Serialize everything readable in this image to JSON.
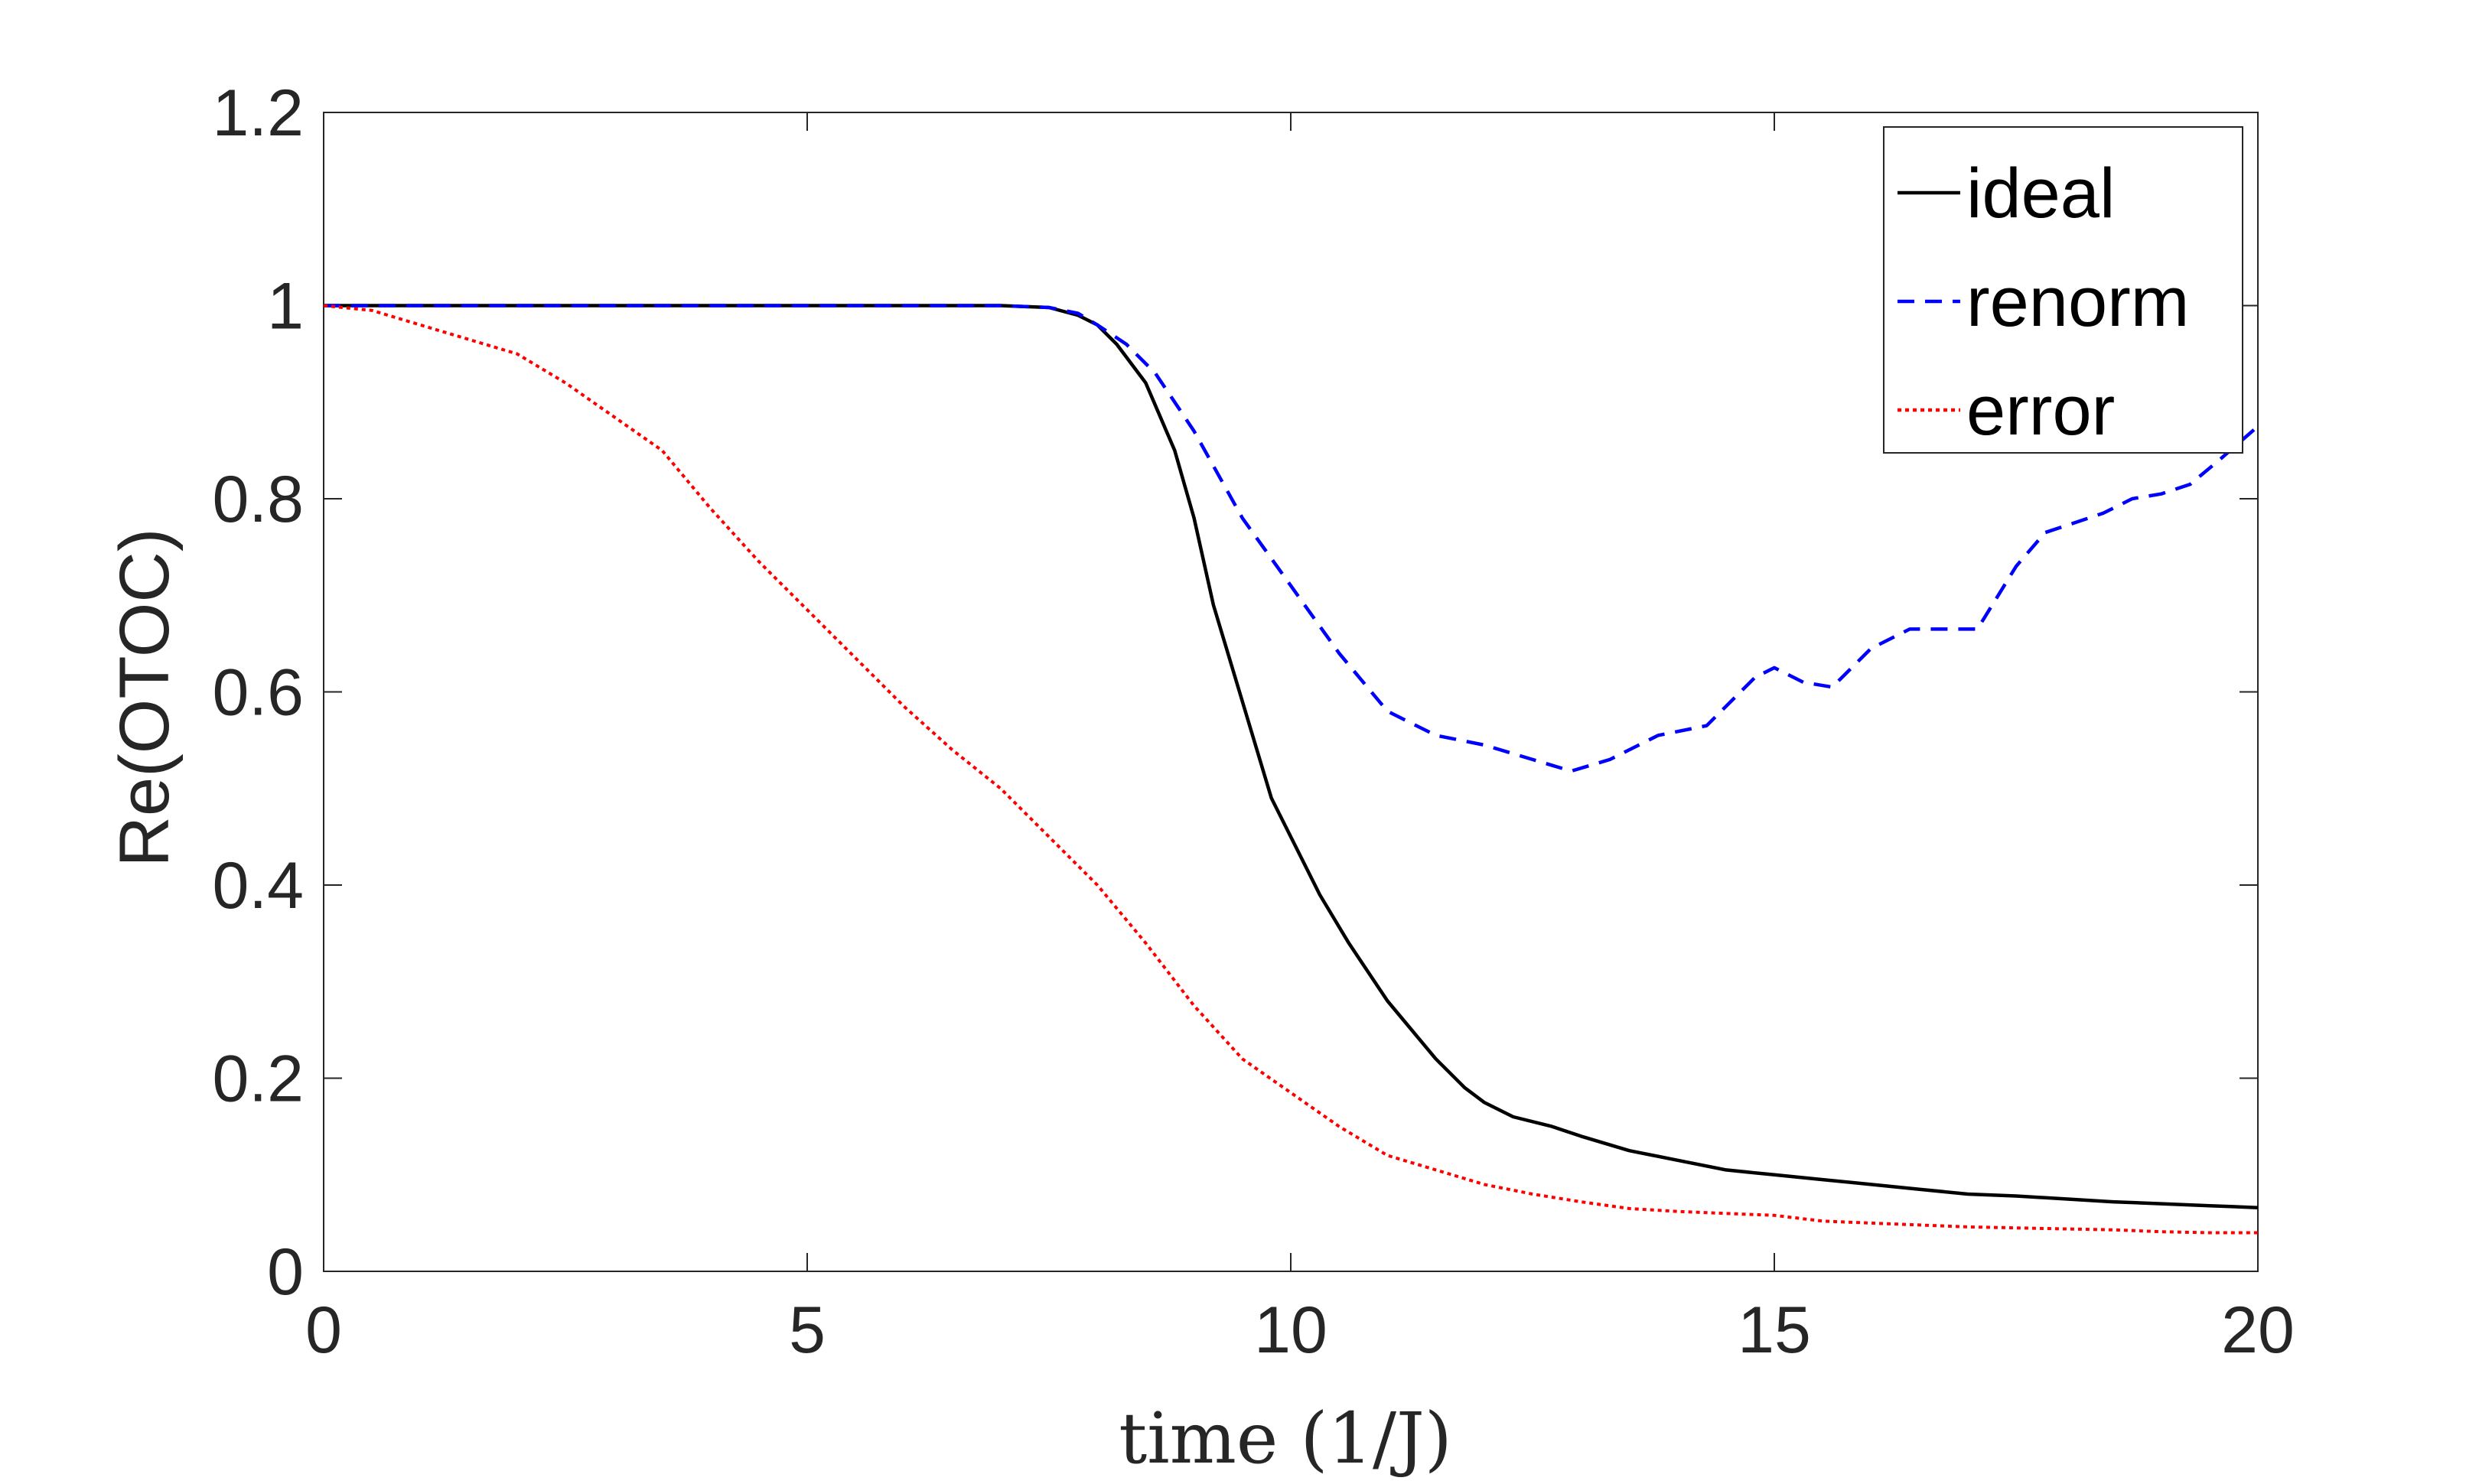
{
  "chart_data": {
    "type": "line",
    "title": "",
    "xlabel": "time (1/J)",
    "ylabel": "Re(OTOC)",
    "xlim": [
      0,
      20
    ],
    "ylim": [
      0,
      1.2
    ],
    "xticks": [
      0,
      5,
      10,
      15,
      20
    ],
    "yticks": [
      0,
      0.2,
      0.4,
      0.6,
      0.8,
      1,
      1.2
    ],
    "xtick_labels": [
      "0",
      "5",
      "10",
      "15",
      "20"
    ],
    "ytick_labels": [
      "0",
      "0.2",
      "0.4",
      "0.6",
      "0.8",
      "1",
      "1.2"
    ],
    "grid": false,
    "legend_position": "top-right",
    "series": [
      {
        "name": "ideal",
        "color": "#000000",
        "style": "solid",
        "x": [
          0,
          1,
          2,
          3,
          4,
          5,
          6,
          7,
          7.5,
          7.8,
          8.0,
          8.2,
          8.5,
          8.8,
          9.0,
          9.2,
          9.5,
          9.8,
          10.0,
          10.3,
          10.6,
          11.0,
          11.5,
          11.8,
          12.0,
          12.3,
          12.7,
          13.0,
          13.5,
          14.0,
          14.5,
          15.0,
          15.5,
          16.0,
          16.5,
          17.0,
          17.5,
          18.0,
          18.5,
          19.0,
          19.5,
          20.0
        ],
        "y": [
          1.0,
          1.0,
          1.0,
          1.0,
          1.0,
          1.0,
          1.0,
          1.0,
          0.998,
          0.99,
          0.98,
          0.96,
          0.92,
          0.85,
          0.78,
          0.69,
          0.59,
          0.49,
          0.45,
          0.39,
          0.34,
          0.28,
          0.22,
          0.19,
          0.175,
          0.16,
          0.15,
          0.14,
          0.125,
          0.115,
          0.105,
          0.1,
          0.095,
          0.09,
          0.085,
          0.08,
          0.078,
          0.075,
          0.072,
          0.07,
          0.068,
          0.066
        ]
      },
      {
        "name": "renorm",
        "color": "#0000ff",
        "style": "dashed",
        "x": [
          0,
          1,
          2,
          3,
          4,
          5,
          6,
          7,
          7.5,
          7.8,
          8.0,
          8.3,
          8.6,
          9.0,
          9.5,
          10.0,
          10.5,
          11.0,
          11.5,
          12.0,
          12.5,
          12.9,
          13.3,
          13.8,
          14.3,
          14.8,
          15.0,
          15.3,
          15.6,
          16.0,
          16.4,
          16.8,
          17.1,
          17.5,
          17.8,
          18.1,
          18.4,
          18.7,
          19.0,
          19.3,
          19.6,
          20.0
        ],
        "y": [
          1.0,
          1.0,
          1.0,
          1.0,
          1.0,
          1.0,
          1.0,
          1.0,
          0.998,
          0.992,
          0.98,
          0.96,
          0.93,
          0.87,
          0.78,
          0.71,
          0.64,
          0.58,
          0.555,
          0.545,
          0.53,
          0.518,
          0.53,
          0.555,
          0.565,
          0.615,
          0.625,
          0.61,
          0.605,
          0.645,
          0.665,
          0.665,
          0.665,
          0.73,
          0.765,
          0.775,
          0.785,
          0.8,
          0.805,
          0.815,
          0.84,
          0.875
        ]
      },
      {
        "name": "error",
        "color": "#ff0000",
        "style": "dotted",
        "x": [
          0,
          0.5,
          1.0,
          1.5,
          2.0,
          2.5,
          3.0,
          3.5,
          4.0,
          4.5,
          5.0,
          5.5,
          6.0,
          6.5,
          7.0,
          7.5,
          8.0,
          8.5,
          9.0,
          9.5,
          10.0,
          10.5,
          11.0,
          11.5,
          12.0,
          12.5,
          13.0,
          13.5,
          14.0,
          14.5,
          15.0,
          15.5,
          16.0,
          16.5,
          17.0,
          17.5,
          18.0,
          18.5,
          19.0,
          19.5,
          20.0
        ],
        "y": [
          1.0,
          0.995,
          0.98,
          0.965,
          0.95,
          0.92,
          0.885,
          0.85,
          0.79,
          0.735,
          0.685,
          0.635,
          0.585,
          0.54,
          0.5,
          0.45,
          0.4,
          0.34,
          0.275,
          0.22,
          0.185,
          0.15,
          0.12,
          0.105,
          0.09,
          0.08,
          0.072,
          0.065,
          0.062,
          0.06,
          0.058,
          0.052,
          0.05,
          0.048,
          0.046,
          0.045,
          0.044,
          0.043,
          0.041,
          0.04,
          0.04
        ]
      }
    ]
  }
}
